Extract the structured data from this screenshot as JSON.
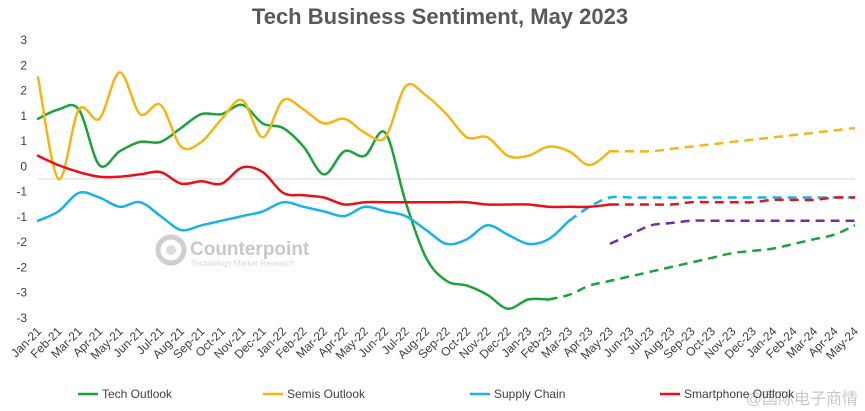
{
  "watermark": {
    "brand": "Counterpoint",
    "tagline": "Technology Market Research",
    "corner": "@国际电子商情",
    "logo_icon": "counterpoint-logo-icon"
  },
  "chart_data": {
    "type": "line",
    "title": "Tech Business Sentiment, May 2023",
    "xlabel": "",
    "ylabel": "",
    "ylim": [
      -3,
      3
    ],
    "y_tick_labels": [
      "3",
      "2",
      "2",
      "1",
      "1",
      "0",
      "-1",
      "-1",
      "-2",
      "-2",
      "-3",
      "-3"
    ],
    "grid": false,
    "legend_position": "bottom",
    "categories": [
      "Jan-21",
      "Feb-21",
      "Mar-21",
      "Apr-21",
      "May-21",
      "Jun-21",
      "Jul-21",
      "Aug-21",
      "Sep-21",
      "Oct-21",
      "Nov-21",
      "Dec-21",
      "Jan-22",
      "Feb-22",
      "Mar-22",
      "Apr-22",
      "May-22",
      "Jun-22",
      "Jul-22",
      "Aug-22",
      "Sep-22",
      "Oct-22",
      "Nov-22",
      "Dec-22",
      "Jan-23",
      "Feb-23",
      "Mar-23",
      "Apr-23",
      "May-23",
      "Jun-23",
      "Jul-23",
      "Aug-23",
      "Sep-23",
      "Oct-23",
      "Nov-23",
      "Dec-23",
      "Jan-24",
      "Feb-24",
      "Mar-24",
      "Apr-24",
      "May-24"
    ],
    "series": [
      {
        "name": "Tech Outlook",
        "color": "#1aa33c",
        "values": [
          1.3,
          1.5,
          1.5,
          0.3,
          0.6,
          0.8,
          0.8,
          1.1,
          1.4,
          1.4,
          1.6,
          1.2,
          1.1,
          0.7,
          0.1,
          0.6,
          0.5,
          1.0,
          -0.5,
          -1.7,
          -2.2,
          -2.3,
          -2.5,
          -2.8,
          -2.6,
          -2.6,
          null,
          null,
          null,
          null,
          null,
          null,
          null,
          null,
          null,
          null,
          null,
          null,
          null,
          null,
          null
        ],
        "forecast": [
          null,
          null,
          null,
          null,
          null,
          null,
          null,
          null,
          null,
          null,
          null,
          null,
          null,
          null,
          null,
          null,
          null,
          null,
          null,
          null,
          null,
          null,
          null,
          null,
          null,
          -2.6,
          -2.5,
          -2.3,
          -2.2,
          -2.1,
          -2.0,
          -1.9,
          -1.8,
          -1.7,
          -1.6,
          -1.55,
          -1.5,
          -1.4,
          -1.3,
          -1.2,
          -1.0
        ]
      },
      {
        "name": "Semis Outlook",
        "color": "#f2b616",
        "values": [
          2.2,
          0.0,
          1.5,
          1.3,
          2.3,
          1.4,
          1.6,
          0.7,
          0.8,
          1.3,
          1.7,
          0.9,
          1.7,
          1.5,
          1.2,
          1.3,
          1.0,
          0.9,
          2.0,
          1.8,
          1.4,
          0.9,
          0.9,
          0.5,
          0.5,
          0.7,
          0.6,
          0.3,
          0.6,
          null,
          null,
          null,
          null,
          null,
          null,
          null,
          null,
          null,
          null,
          null,
          null
        ],
        "forecast": [
          null,
          null,
          null,
          null,
          null,
          null,
          null,
          null,
          null,
          null,
          null,
          null,
          null,
          null,
          null,
          null,
          null,
          null,
          null,
          null,
          null,
          null,
          null,
          null,
          null,
          null,
          null,
          null,
          0.6,
          0.6,
          0.6,
          0.65,
          0.7,
          0.75,
          0.8,
          0.85,
          0.9,
          0.95,
          1.0,
          1.05,
          1.1
        ]
      },
      {
        "name": "Supply Chain",
        "color": "#19b3e6",
        "values": [
          -0.9,
          -0.7,
          -0.3,
          -0.4,
          -0.6,
          -0.5,
          -0.8,
          -1.1,
          -1.0,
          -0.9,
          -0.8,
          -0.7,
          -0.5,
          -0.6,
          -0.7,
          -0.8,
          -0.6,
          -0.7,
          -0.8,
          -1.1,
          -1.4,
          -1.3,
          -1.0,
          -1.2,
          -1.4,
          -1.3,
          -0.9,
          null,
          null,
          null,
          null,
          null,
          null,
          null,
          null,
          null,
          null,
          null,
          null,
          null,
          null
        ],
        "forecast": [
          null,
          null,
          null,
          null,
          null,
          null,
          null,
          null,
          null,
          null,
          null,
          null,
          null,
          null,
          null,
          null,
          null,
          null,
          null,
          null,
          null,
          null,
          null,
          null,
          null,
          null,
          -0.9,
          -0.6,
          -0.4,
          -0.4,
          -0.4,
          -0.4,
          -0.4,
          -0.4,
          -0.4,
          -0.4,
          -0.4,
          -0.4,
          -0.4,
          -0.4,
          -0.4
        ]
      },
      {
        "name": "Smartphone Outlook",
        "color": "#e8111b",
        "values": [
          0.5,
          0.3,
          0.15,
          0.05,
          0.05,
          0.1,
          0.15,
          -0.1,
          -0.05,
          -0.1,
          0.25,
          0.15,
          -0.3,
          -0.35,
          -0.4,
          -0.55,
          -0.5,
          -0.5,
          -0.5,
          -0.5,
          -0.5,
          -0.5,
          -0.55,
          -0.55,
          -0.55,
          -0.6,
          -0.6,
          -0.6,
          -0.55,
          null,
          null,
          null,
          null,
          null,
          null,
          null,
          null,
          null,
          null,
          null,
          null
        ],
        "forecast": [
          null,
          null,
          null,
          null,
          null,
          null,
          null,
          null,
          null,
          null,
          null,
          null,
          null,
          null,
          null,
          null,
          null,
          null,
          null,
          null,
          null,
          null,
          null,
          null,
          null,
          null,
          null,
          null,
          -0.55,
          -0.55,
          -0.55,
          -0.55,
          -0.5,
          -0.5,
          -0.5,
          -0.5,
          -0.45,
          -0.45,
          -0.45,
          -0.4,
          -0.4
        ]
      },
      {
        "name": "",
        "color": "#7030a0",
        "legend": false,
        "values": [
          null,
          null,
          null,
          null,
          null,
          null,
          null,
          null,
          null,
          null,
          null,
          null,
          null,
          null,
          null,
          null,
          null,
          null,
          null,
          null,
          null,
          null,
          null,
          null,
          null,
          null,
          null,
          null,
          null,
          null,
          null,
          null,
          null,
          null,
          null,
          null,
          null,
          null,
          null,
          null,
          null
        ],
        "forecast": [
          null,
          null,
          null,
          null,
          null,
          null,
          null,
          null,
          null,
          null,
          null,
          null,
          null,
          null,
          null,
          null,
          null,
          null,
          null,
          null,
          null,
          null,
          null,
          null,
          null,
          null,
          null,
          null,
          -1.4,
          -1.2,
          -1.0,
          -0.95,
          -0.9,
          -0.9,
          -0.9,
          -0.9,
          -0.9,
          -0.9,
          -0.9,
          -0.9,
          -0.9
        ]
      }
    ]
  }
}
